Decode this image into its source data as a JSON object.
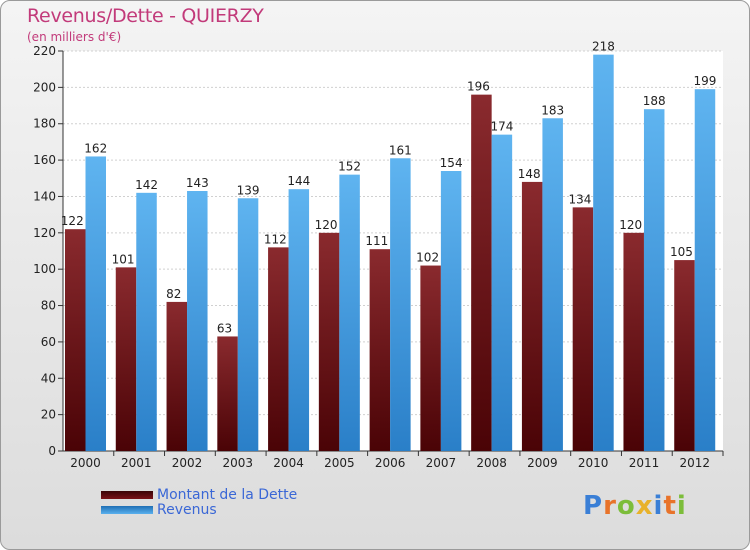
{
  "title": "Revenus/Dette - QUIERZY",
  "subtitle": "(en milliers d'€)",
  "logo_text": "Proxiti",
  "chart_data": {
    "type": "bar",
    "categories": [
      "2000",
      "2001",
      "2002",
      "2003",
      "2004",
      "2005",
      "2006",
      "2007",
      "2008",
      "2009",
      "2010",
      "2011",
      "2012"
    ],
    "series": [
      {
        "name": "Montant de la Dette",
        "color": "#7a1218",
        "values": [
          122,
          101,
          82,
          63,
          112,
          120,
          111,
          102,
          196,
          148,
          134,
          120,
          105
        ]
      },
      {
        "name": "Revenus",
        "color": "#3d98e0",
        "values": [
          162,
          142,
          143,
          139,
          144,
          152,
          161,
          154,
          174,
          183,
          218,
          188,
          199
        ]
      }
    ],
    "ylim": [
      0,
      220
    ],
    "yticks": [
      0,
      20,
      40,
      60,
      80,
      100,
      120,
      140,
      160,
      180,
      200,
      220
    ],
    "grid": true,
    "legend_position": "bottom-left"
  }
}
